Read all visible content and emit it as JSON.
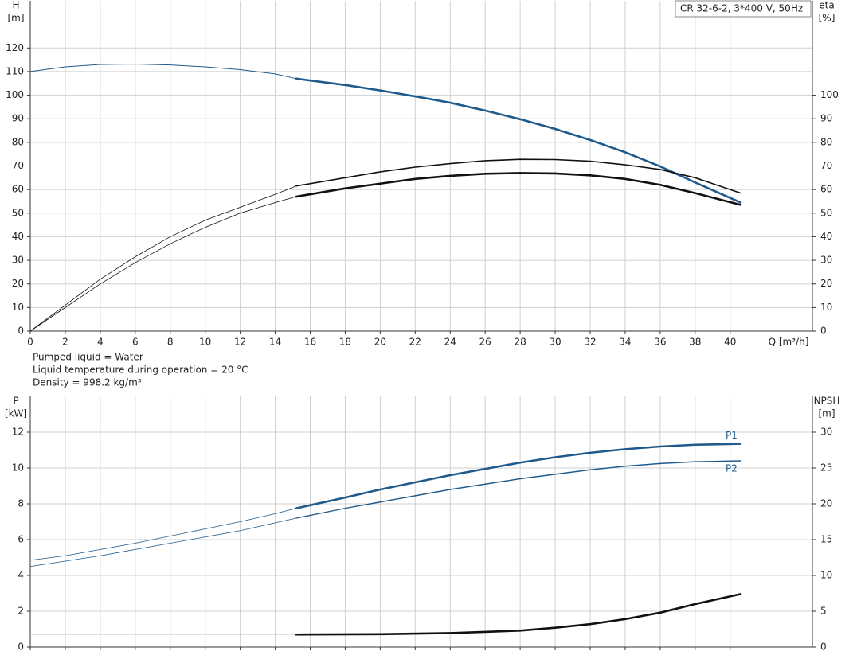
{
  "chart_data": [
    {
      "type": "line",
      "title": "CR 32-6-2, 3*400 V, 50Hz",
      "ylabel": "H",
      "yunit": "[m]",
      "y2label": "eta",
      "y2unit": "[%]",
      "xlabel": "Q [m³/h]",
      "xlim": [
        0,
        44.7
      ],
      "xticks": [
        0,
        2,
        4,
        6,
        8,
        10,
        12,
        14,
        16,
        18,
        20,
        22,
        24,
        26,
        28,
        30,
        32,
        34,
        36,
        38,
        40
      ],
      "ylim": [
        0,
        140
      ],
      "yticks": [
        0,
        10,
        20,
        30,
        40,
        50,
        60,
        70,
        80,
        90,
        100,
        110,
        120
      ],
      "y2lim": [
        0,
        140
      ],
      "y2ticks": [
        0,
        10,
        20,
        30,
        40,
        50,
        60,
        70,
        80,
        90,
        100
      ],
      "grid": true,
      "show_xtick_labels": true,
      "annotations": [
        "Pumped liquid = Water",
        "Liquid temperature during operation = 20 °C",
        "Density = 998.2 kg/m³"
      ],
      "series": [
        {
          "color": "#1f5a8c",
          "width": 1,
          "x": [
            0,
            2,
            4,
            6,
            8,
            10,
            12,
            14,
            15.2
          ],
          "values": [
            110,
            112,
            113,
            113.2,
            112.8,
            112,
            110.8,
            109,
            107
          ]
        },
        {
          "color": "#1f5a8c",
          "width": 2.6,
          "x": [
            15.2,
            18,
            20,
            22,
            24,
            26,
            28,
            30,
            32,
            34,
            36,
            38,
            40.6
          ],
          "values": [
            107,
            104.3,
            102,
            99.5,
            96.8,
            93.5,
            89.8,
            85.7,
            81,
            75.8,
            69.8,
            63,
            54.5
          ]
        },
        {
          "color": "#111111",
          "width": 0.8,
          "axis": "y2",
          "x": [
            0,
            2,
            4,
            6,
            8,
            10,
            12,
            14,
            15.2
          ],
          "values": [
            0,
            11,
            22,
            31.5,
            40,
            47,
            52.5,
            58,
            61.5
          ]
        },
        {
          "color": "#111111",
          "width": 1.6,
          "axis": "y2",
          "x": [
            15.2,
            18,
            20,
            22,
            24,
            26,
            28,
            30,
            32,
            34,
            36,
            38,
            40.6
          ],
          "values": [
            61.5,
            65,
            67.5,
            69.5,
            71,
            72.2,
            72.8,
            72.7,
            72,
            70.5,
            68.5,
            65,
            58.5
          ]
        },
        {
          "color": "#111111",
          "width": 0.8,
          "axis": "y2",
          "x": [
            0,
            2,
            4,
            6,
            8,
            10,
            12,
            14,
            15.2
          ],
          "values": [
            0,
            10,
            20,
            29,
            37,
            44,
            50,
            54.5,
            57
          ]
        },
        {
          "color": "#111111",
          "width": 2.6,
          "axis": "y2",
          "x": [
            15.2,
            18,
            20,
            22,
            24,
            26,
            28,
            30,
            32,
            34,
            36,
            38,
            40.6
          ],
          "values": [
            57,
            60.5,
            62.5,
            64.5,
            65.8,
            66.7,
            67,
            66.8,
            66,
            64.5,
            62,
            58.5,
            53.5
          ]
        }
      ]
    },
    {
      "type": "line",
      "ylabel": "P",
      "yunit": "[kW]",
      "y2label": "NPSH",
      "y2unit": "[m]",
      "xlim": [
        0,
        44.7
      ],
      "xticks": [
        0,
        2,
        4,
        6,
        8,
        10,
        12,
        14,
        16,
        18,
        20,
        22,
        24,
        26,
        28,
        30,
        32,
        34,
        36,
        38,
        40
      ],
      "ylim": [
        0,
        14
      ],
      "yticks": [
        0,
        2,
        4,
        6,
        8,
        10,
        12
      ],
      "y2lim": [
        0,
        35
      ],
      "y2ticks": [
        0,
        5,
        10,
        15,
        20,
        25,
        30
      ],
      "grid": true,
      "show_xtick_labels": false,
      "series": [
        {
          "color": "#1f5a8c",
          "width": 0.8,
          "x": [
            0,
            2,
            4,
            6,
            8,
            10,
            12,
            14,
            15.2
          ],
          "values": [
            4.85,
            5.1,
            5.45,
            5.8,
            6.2,
            6.6,
            7.0,
            7.45,
            7.75
          ]
        },
        {
          "name": "P1",
          "color": "#1f5a8c",
          "width": 2.6,
          "x": [
            15.2,
            18,
            20,
            22,
            24,
            26,
            28,
            30,
            32,
            34,
            36,
            38,
            40.6
          ],
          "values": [
            7.75,
            8.35,
            8.8,
            9.2,
            9.6,
            9.95,
            10.3,
            10.6,
            10.85,
            11.05,
            11.2,
            11.3,
            11.35
          ]
        },
        {
          "color": "#1f5a8c",
          "width": 0.8,
          "x": [
            0,
            4,
            8,
            12,
            15.2
          ],
          "values": [
            4.5,
            5.1,
            5.8,
            6.5,
            7.2
          ]
        },
        {
          "name": "P2",
          "color": "#1f5a8c",
          "width": 1.4,
          "x": [
            15.2,
            18,
            20,
            22,
            24,
            26,
            28,
            30,
            32,
            34,
            36,
            38,
            40.6
          ],
          "values": [
            7.2,
            7.75,
            8.1,
            8.45,
            8.8,
            9.1,
            9.4,
            9.65,
            9.9,
            10.1,
            10.25,
            10.35,
            10.4
          ]
        },
        {
          "color": "#888888",
          "width": 1,
          "axis": "y2",
          "x": [
            0,
            15.2
          ],
          "values": [
            1.8,
            1.8
          ]
        },
        {
          "color": "#111111",
          "width": 2.6,
          "axis": "y2",
          "x": [
            15.2,
            20,
            24,
            28,
            30,
            32,
            34,
            36,
            38,
            40.6
          ],
          "values": [
            1.75,
            1.8,
            1.95,
            2.3,
            2.7,
            3.2,
            3.9,
            4.8,
            6.0,
            7.4
          ]
        }
      ]
    }
  ]
}
